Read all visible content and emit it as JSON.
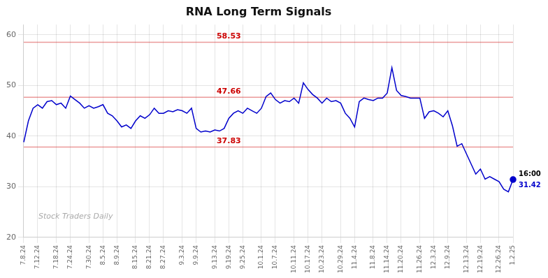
{
  "chart_data": {
    "type": "line",
    "title": "RNA Long Term Signals",
    "color": "#0000cc",
    "grid": true,
    "ylim": [
      20,
      62
    ],
    "yticks": [
      20,
      30,
      40,
      50,
      60
    ],
    "categories": [
      "7.8.24",
      null,
      null,
      "7.12.24",
      null,
      null,
      null,
      "7.18.24",
      null,
      null,
      "7.24.24",
      null,
      null,
      null,
      "7.30.24",
      null,
      null,
      "8.5.24",
      null,
      null,
      "8.9.24",
      null,
      null,
      null,
      "8.15.24",
      null,
      null,
      "8.21.24",
      null,
      null,
      "8.27.24",
      null,
      null,
      null,
      "9.3.24",
      null,
      null,
      "9.9.24",
      null,
      null,
      null,
      "9.13.24",
      null,
      null,
      "9.19.24",
      null,
      null,
      "9.25.24",
      null,
      null,
      null,
      "10.1.24",
      null,
      null,
      "10.7.24",
      null,
      null,
      null,
      "10.11.24",
      null,
      null,
      "10.17.24",
      null,
      null,
      "10.23.24",
      null,
      null,
      null,
      "10.29.24",
      null,
      null,
      "11.4.24",
      null,
      null,
      null,
      "11.8.24",
      null,
      null,
      "11.14.24",
      null,
      null,
      "11.20.24",
      null,
      null,
      null,
      "11.26.24",
      null,
      null,
      "12.3.24",
      null,
      null,
      "12.9.24",
      null,
      null,
      null,
      "12.13.24",
      null,
      null,
      "12.19.24",
      null,
      null,
      null,
      "12.26.24",
      null,
      null,
      "1.2.25"
    ],
    "values": [
      38.8,
      43.0,
      45.5,
      46.2,
      45.5,
      46.8,
      47.0,
      46.2,
      46.5,
      45.5,
      47.9,
      47.2,
      46.5,
      45.5,
      46.0,
      45.5,
      45.8,
      46.2,
      44.5,
      44.0,
      43.0,
      41.8,
      42.2,
      41.5,
      43.0,
      44.0,
      43.5,
      44.2,
      45.5,
      44.5,
      44.5,
      45.0,
      44.8,
      45.2,
      45.0,
      44.5,
      45.5,
      41.5,
      40.8,
      41.0,
      40.8,
      41.2,
      41.0,
      41.5,
      43.5,
      44.5,
      45.0,
      44.5,
      45.5,
      45.0,
      44.5,
      45.5,
      47.8,
      48.5,
      47.2,
      46.5,
      47.0,
      46.8,
      47.5,
      46.5,
      50.5,
      49.2,
      48.2,
      47.5,
      46.5,
      47.5,
      46.8,
      47.0,
      46.5,
      44.5,
      43.5,
      41.8,
      46.8,
      47.5,
      47.2,
      47.0,
      47.5,
      47.5,
      48.5,
      53.5,
      49.0,
      48.0,
      47.8,
      47.5,
      47.5,
      47.5,
      43.5,
      44.8,
      45.0,
      44.5,
      43.8,
      45.0,
      42.0,
      38.0,
      38.5,
      36.5,
      34.5,
      32.5,
      33.5,
      31.5,
      32.0,
      31.5,
      31.0,
      29.5,
      29.0,
      31.42
    ],
    "hlines": [
      {
        "y": 58.53,
        "label": "58.53",
        "color": "#cc0000"
      },
      {
        "y": 47.66,
        "label": "47.66",
        "color": "#cc0000"
      },
      {
        "y": 37.83,
        "label": "37.83",
        "color": "#cc0000"
      }
    ],
    "annotations": [
      {
        "text": "16:00",
        "anchor": "last_point",
        "position": "above"
      },
      {
        "text": "31.42",
        "anchor": "last_point",
        "position": "below",
        "color": "#0000cc"
      },
      {
        "text": "Stock Traders Daily",
        "anchor": "watermark"
      }
    ]
  }
}
